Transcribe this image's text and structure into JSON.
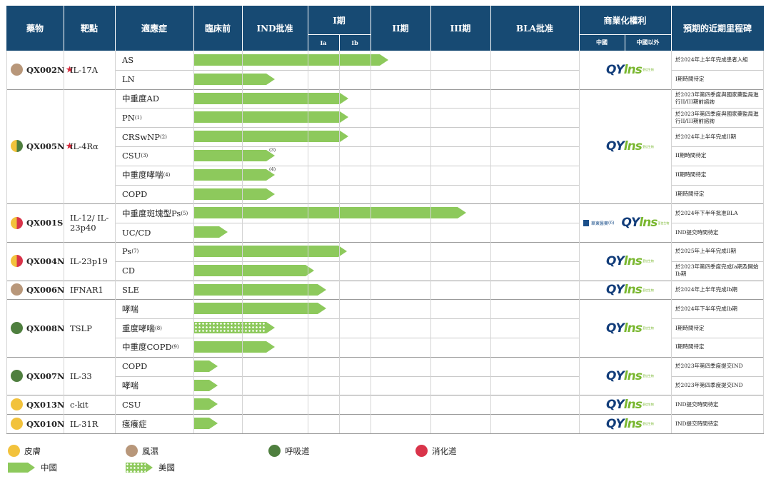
{
  "chart_data": {
    "type": "table",
    "headers": {
      "drug": "藥物",
      "target": "靶點",
      "indication": "適應症",
      "preclinical": "臨床前",
      "ind": "IND批准",
      "phase1": "I期",
      "phase1a": "Ia",
      "phase1b": "Ib",
      "phase2": "II期",
      "phase3": "III期",
      "bla": "BLA批准",
      "rights": "商業化權利",
      "rights_china": "中國",
      "rights_outside": "中國以外",
      "milestone": "預期的近期里程碑"
    },
    "stages": [
      "臨床前",
      "IND批准",
      "Ia",
      "Ib",
      "II期",
      "III期",
      "BLA批准"
    ],
    "drugs": [
      {
        "name": "QX002N",
        "star": "★",
        "target": "IL-17A",
        "category": "風濕",
        "rows": [
          {
            "indication": "AS",
            "sup": "",
            "progress": 4.3,
            "region": "中國",
            "fn": "",
            "milestone": "於2024年上半年完成患者入組"
          },
          {
            "indication": "LN",
            "sup": "",
            "progress": 1.5,
            "region": "中國",
            "fn": "",
            "milestone": "I期時間待定"
          }
        ]
      },
      {
        "name": "QX005N",
        "star": "★",
        "target": "IL-4Rα",
        "category": "皮膚/呼吸道",
        "rows": [
          {
            "indication": "中重度AD",
            "sup": "",
            "progress": 3.3,
            "region": "中國",
            "fn": "",
            "milestone": "於2023年第四季度與國家藥監局進行II/III期前諮詢"
          },
          {
            "indication": "PN",
            "sup": "(1)",
            "progress": 3.3,
            "region": "中國",
            "fn": "",
            "milestone": "於2023年第四季度與國家藥監局進行II/III期前諮詢"
          },
          {
            "indication": "CRSwNP",
            "sup": "(2)",
            "progress": 3.3,
            "region": "中國",
            "fn": "",
            "milestone": "於2024年上半年完成II期"
          },
          {
            "indication": "CSU",
            "sup": "(3)",
            "progress": 1.5,
            "region": "中國",
            "fn": "(3)",
            "milestone": "II期時間待定"
          },
          {
            "indication": "中重度哮喘",
            "sup": "(4)",
            "progress": 1.5,
            "region": "中國",
            "fn": "(4)",
            "milestone": "II期時間待定"
          },
          {
            "indication": "COPD",
            "sup": "",
            "progress": 1.5,
            "region": "中國",
            "fn": "",
            "milestone": "I期時間待定"
          }
        ]
      },
      {
        "name": "QX001S",
        "star": "",
        "target": "IL-12/ IL-23p40",
        "category": "皮膚/消化道",
        "rows": [
          {
            "indication": "中重度斑塊型Ps",
            "sup": "(5)",
            "progress": 5.6,
            "region": "中國",
            "fn": "",
            "milestone": "於2024年下半年批准BLA"
          },
          {
            "indication": "UC/CD",
            "sup": "",
            "progress": 0.7,
            "region": "中國",
            "fn": "",
            "milestone": "IND提交時間待定"
          }
        ]
      },
      {
        "name": "QX004N",
        "star": "",
        "target": "IL-23p19",
        "category": "皮膚/消化道",
        "rows": [
          {
            "indication": "Ps",
            "sup": "(7)",
            "progress": 3.25,
            "region": "中國",
            "fn": "",
            "milestone": "於2025年上半年完成II期"
          },
          {
            "indication": "CD",
            "sup": "",
            "progress": 2.2,
            "region": "中國",
            "fn": "",
            "milestone": "於2023年第四季度完成Ia期及開始Ib期"
          }
        ]
      },
      {
        "name": "QX006N",
        "star": "",
        "target": "IFNAR1",
        "category": "風濕",
        "rows": [
          {
            "indication": "SLE",
            "sup": "",
            "progress": 2.6,
            "region": "中國",
            "fn": "",
            "milestone": "於2024年上半年完成Ib期"
          }
        ]
      },
      {
        "name": "QX008N",
        "star": "",
        "target": "TSLP",
        "category": "呼吸道",
        "rows": [
          {
            "indication": "哮喘",
            "sup": "",
            "progress": 2.6,
            "region": "中國",
            "fn": "",
            "milestone": "於2024年下半年完成Ib期"
          },
          {
            "indication": "重度哮喘",
            "sup": "(8)",
            "progress": 1.5,
            "region": "美國",
            "fn": "",
            "milestone": "I期時間待定"
          },
          {
            "indication": "中重度COPD",
            "sup": "(9)",
            "progress": 1.5,
            "region": "中國",
            "fn": "",
            "milestone": "I期時間待定"
          }
        ]
      },
      {
        "name": "QX007N",
        "star": "",
        "target": "IL-33",
        "category": "呼吸道",
        "rows": [
          {
            "indication": "COPD",
            "sup": "",
            "progress": 0.5,
            "region": "中國",
            "fn": "",
            "milestone": "於2023年第四季度提交IND"
          },
          {
            "indication": "哮喘",
            "sup": "",
            "progress": 0.5,
            "region": "中國",
            "fn": "",
            "milestone": "於2023年第四季度提交IND"
          }
        ]
      },
      {
        "name": "QX013N",
        "star": "",
        "target": "c-kit",
        "category": "皮膚",
        "rows": [
          {
            "indication": "CSU",
            "sup": "",
            "progress": 0.5,
            "region": "中國",
            "fn": "",
            "milestone": "IND提交時間待定"
          }
        ]
      },
      {
        "name": "QX010N",
        "star": "",
        "target": "IL-31R",
        "category": "皮膚",
        "rows": [
          {
            "indication": "瘙癢症",
            "sup": "",
            "progress": 0.5,
            "region": "中國",
            "fn": "",
            "milestone": "IND提交時間待定"
          }
        ]
      }
    ],
    "rights_logo": {
      "brand_a": "QY",
      "brand_b": "lns",
      "brand_sub": "荃信生物",
      "partner": "華東醫藥",
      "partner_fn": "(6)"
    },
    "legend": {
      "categories": [
        {
          "label": "皮膚",
          "color": "#f2c23c"
        },
        {
          "label": "風濕",
          "color": "#b8977a"
        },
        {
          "label": "呼吸道",
          "color": "#4f7f3f"
        },
        {
          "label": "消化道",
          "color": "#d9344a"
        }
      ],
      "regions": [
        {
          "label": "中國",
          "pattern": "solid"
        },
        {
          "label": "美國",
          "pattern": "dotted"
        }
      ]
    },
    "colors": {
      "header": "#174a73",
      "arrow": "#8dc95c",
      "skin": "#f2c23c",
      "rheum": "#b8977a",
      "resp": "#4f7f3f",
      "digest": "#d9344a"
    }
  }
}
